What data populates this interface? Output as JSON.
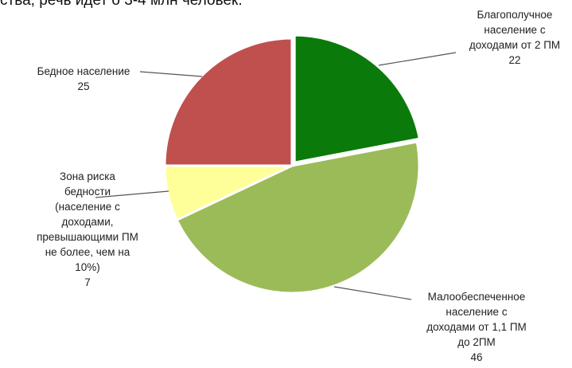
{
  "header_text": "ства, речь идет о 3-4 млн человек.",
  "colors": {
    "prosperous": "#0a7a0a",
    "low_income": "#9bbb59",
    "risk_zone": "#ffff99",
    "poor": "#c0504d",
    "slice_border": "#ffffff",
    "leader": "#555555"
  },
  "chart_data": {
    "type": "pie",
    "title": "",
    "slices": [
      {
        "key": "prosperous",
        "label": [
          "Благополучное",
          "население с",
          "доходами от 2 ПМ"
        ],
        "value": 22
      },
      {
        "key": "low_income",
        "label": [
          "Малообеспеченное",
          "население с",
          "доходами от 1,1 ПМ",
          "до 2ПМ"
        ],
        "value": 46
      },
      {
        "key": "risk_zone",
        "label": [
          "Зона риска",
          "бедности",
          "(население с",
          "доходами,",
          "превышающими ПМ",
          "не более, чем на",
          "10%)"
        ],
        "value": 7
      },
      {
        "key": "poor",
        "label": [
          "Бедное население"
        ],
        "value": 25
      }
    ]
  }
}
